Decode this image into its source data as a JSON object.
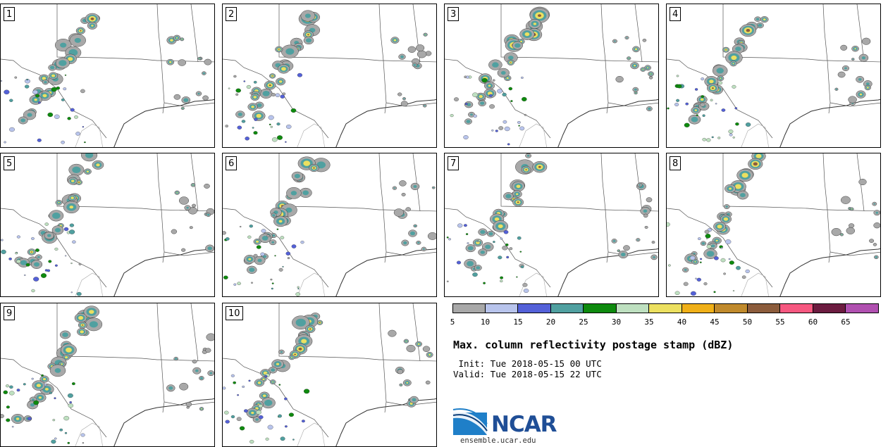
{
  "panels": [
    {
      "label": "1"
    },
    {
      "label": "2"
    },
    {
      "label": "3"
    },
    {
      "label": "4"
    },
    {
      "label": "5"
    },
    {
      "label": "6"
    },
    {
      "label": "7"
    },
    {
      "label": "8"
    },
    {
      "label": "9"
    },
    {
      "label": "10"
    }
  ],
  "legend": {
    "colors": [
      "#a8a8a8",
      "#b8c4ec",
      "#5461d8",
      "#50a0a0",
      "#0e8a0e",
      "#bee0c0",
      "#ece060",
      "#f0b018",
      "#c08a2c",
      "#8c5c3c",
      "#f65880",
      "#6c1c40",
      "#b050b0"
    ],
    "ticks": [
      "5",
      "10",
      "15",
      "20",
      "25",
      "30",
      "35",
      "40",
      "45",
      "50",
      "55",
      "60",
      "65"
    ]
  },
  "title": "Max. column reflectivity postage stamp (dBZ)",
  "init": " Init: Tue 2018-05-15 00 UTC",
  "valid": "Valid: Tue 2018-05-15 22 UTC",
  "logo": {
    "org": "NCAR",
    "url": "ensemble.ucar.edu",
    "brand_color": "#1f4e96"
  }
}
